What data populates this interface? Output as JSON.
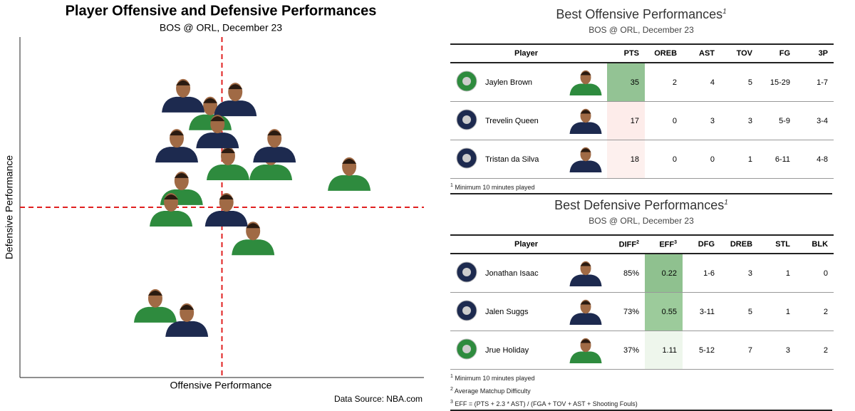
{
  "chart_data": {
    "type": "scatter",
    "title": "Player Offensive and Defensive Performances",
    "subtitle": "BOS @ ORL, December 23",
    "xlabel": "Offensive Performance",
    "ylabel": "Defensive Performance",
    "source": "Data Source: NBA.com",
    "xlim": [
      0,
      100
    ],
    "ylim": [
      0,
      100
    ],
    "ref_x": 50,
    "ref_y": 50,
    "ref_color": "#e02020",
    "series": [
      {
        "color": "#2e8b3e",
        "x": [
          47.1,
          51.5,
          62.1,
          81.5,
          40.0,
          37.4,
          57.7,
          33.5
        ],
        "values": [
          78.5,
          63.8,
          63.8,
          60.7,
          56.5,
          50.2,
          41.8,
          22.0
        ]
      },
      {
        "color": "#1d2a4f",
        "x": [
          40.4,
          53.3,
          38.8,
          48.9,
          63.0,
          51.1,
          41.3
        ],
        "values": [
          83.7,
          82.6,
          69.0,
          73.2,
          69.0,
          50.2,
          17.8
        ]
      }
    ]
  },
  "tables": [
    {
      "title": "Best Offensive Performances",
      "title_sup": "1",
      "subtitle": "BOS @ ORL, December 23",
      "columns": [
        "Player",
        "PTS",
        "OREB",
        "AST",
        "TOV",
        "FG",
        "3P"
      ],
      "column_sups": [
        null,
        null,
        null,
        null,
        null,
        null,
        null
      ],
      "rows": [
        [
          "Jaylen Brown",
          35,
          2,
          4,
          5,
          "15-29",
          "1-7"
        ],
        [
          "Trevelin Queen",
          17,
          0,
          3,
          3,
          "5-9",
          "3-4"
        ],
        [
          "Tristan da Silva",
          18,
          0,
          0,
          1,
          "6-11",
          "4-8"
        ]
      ],
      "row_colors": [
        "#2e8b3e",
        "#1d2a4f",
        "#1d2a4f"
      ],
      "highlight_column": 1,
      "highlight_colors": [
        "#93c394",
        "#fdecea",
        "#fdf0ee"
      ],
      "footnotes": [
        {
          "sup": "1",
          "text": "Minimum 10 minutes played"
        }
      ]
    },
    {
      "title": "Best Defensive Performances",
      "title_sup": "1",
      "subtitle": "BOS @ ORL, December 23",
      "columns": [
        "Player",
        "DIFF",
        "EFF",
        "DFG",
        "DREB",
        "STL",
        "BLK"
      ],
      "column_sups": [
        null,
        "2",
        "3",
        null,
        null,
        null,
        null
      ],
      "rows": [
        [
          "Jonathan Isaac",
          "85%",
          0.22,
          "1-6",
          3,
          1,
          0
        ],
        [
          "Jalen Suggs",
          "73%",
          0.55,
          "3-11",
          5,
          1,
          2
        ],
        [
          "Jrue Holiday",
          "37%",
          1.11,
          "5-12",
          7,
          3,
          2
        ]
      ],
      "row_colors": [
        "#1d2a4f",
        "#1d2a4f",
        "#2e8b3e"
      ],
      "highlight_column": 2,
      "highlight_colors": [
        "#8fc18f",
        "#9ccb9b",
        "#eef6ec"
      ],
      "footnotes": [
        {
          "sup": "1",
          "text": "Minimum 10 minutes played"
        },
        {
          "sup": "2",
          "text": "Average Matchup Difficulty"
        },
        {
          "sup": "3",
          "text": "EFF = (PTS + 2.3 * AST) / (FGA + TOV + AST + Shooting Fouls)"
        }
      ]
    }
  ]
}
